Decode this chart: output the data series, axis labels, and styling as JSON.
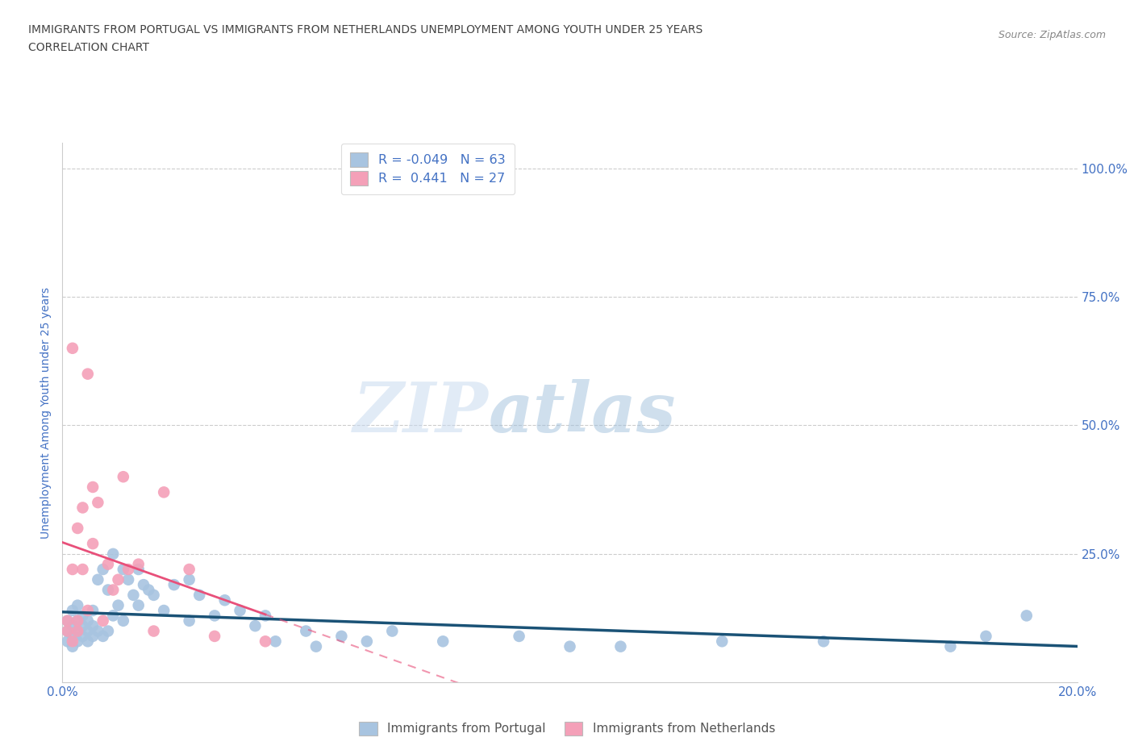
{
  "title_line1": "IMMIGRANTS FROM PORTUGAL VS IMMIGRANTS FROM NETHERLANDS UNEMPLOYMENT AMONG YOUTH UNDER 25 YEARS",
  "title_line2": "CORRELATION CHART",
  "source_text": "Source: ZipAtlas.com",
  "ylabel": "Unemployment Among Youth under 25 years",
  "watermark_zip": "ZIP",
  "watermark_atlas": "atlas",
  "legend_label1": "Immigrants from Portugal",
  "legend_label2": "Immigrants from Netherlands",
  "R1": -0.049,
  "N1": 63,
  "R2": 0.441,
  "N2": 27,
  "color1": "#a8c4e0",
  "color2": "#f4a0b8",
  "line_color1": "#1a5276",
  "line_color2": "#e8507a",
  "axis_label_color": "#4472c4",
  "xlim": [
    0.0,
    0.2
  ],
  "ylim": [
    0.0,
    1.05
  ],
  "yticks": [
    0.0,
    0.25,
    0.5,
    0.75,
    1.0
  ],
  "ytick_labels": [
    "",
    "25.0%",
    "50.0%",
    "75.0%",
    "100.0%"
  ],
  "xticks": [
    0.0,
    0.05,
    0.1,
    0.15,
    0.2
  ],
  "xtick_labels": [
    "0.0%",
    "",
    "",
    "",
    "20.0%"
  ],
  "portugal_x": [
    0.001,
    0.001,
    0.001,
    0.002,
    0.002,
    0.002,
    0.002,
    0.003,
    0.003,
    0.003,
    0.003,
    0.004,
    0.004,
    0.004,
    0.005,
    0.005,
    0.005,
    0.006,
    0.006,
    0.006,
    0.007,
    0.007,
    0.008,
    0.008,
    0.009,
    0.009,
    0.01,
    0.01,
    0.011,
    0.012,
    0.012,
    0.013,
    0.014,
    0.015,
    0.015,
    0.016,
    0.017,
    0.018,
    0.02,
    0.022,
    0.025,
    0.025,
    0.027,
    0.03,
    0.032,
    0.035,
    0.038,
    0.04,
    0.042,
    0.048,
    0.05,
    0.055,
    0.06,
    0.065,
    0.075,
    0.09,
    0.1,
    0.11,
    0.13,
    0.15,
    0.175,
    0.182,
    0.19
  ],
  "portugal_y": [
    0.1,
    0.12,
    0.08,
    0.11,
    0.09,
    0.14,
    0.07,
    0.1,
    0.12,
    0.08,
    0.15,
    0.09,
    0.11,
    0.13,
    0.08,
    0.1,
    0.12,
    0.09,
    0.11,
    0.14,
    0.1,
    0.2,
    0.09,
    0.22,
    0.1,
    0.18,
    0.13,
    0.25,
    0.15,
    0.12,
    0.22,
    0.2,
    0.17,
    0.22,
    0.15,
    0.19,
    0.18,
    0.17,
    0.14,
    0.19,
    0.2,
    0.12,
    0.17,
    0.13,
    0.16,
    0.14,
    0.11,
    0.13,
    0.08,
    0.1,
    0.07,
    0.09,
    0.08,
    0.1,
    0.08,
    0.09,
    0.07,
    0.07,
    0.08,
    0.08,
    0.07,
    0.09,
    0.13
  ],
  "netherlands_x": [
    0.001,
    0.001,
    0.002,
    0.002,
    0.002,
    0.003,
    0.003,
    0.003,
    0.004,
    0.004,
    0.005,
    0.005,
    0.006,
    0.006,
    0.007,
    0.008,
    0.009,
    0.01,
    0.011,
    0.012,
    0.013,
    0.015,
    0.018,
    0.02,
    0.025,
    0.03,
    0.04
  ],
  "netherlands_y": [
    0.1,
    0.12,
    0.65,
    0.08,
    0.22,
    0.1,
    0.12,
    0.3,
    0.22,
    0.34,
    0.6,
    0.14,
    0.27,
    0.38,
    0.35,
    0.12,
    0.23,
    0.18,
    0.2,
    0.4,
    0.22,
    0.23,
    0.1,
    0.37,
    0.22,
    0.09,
    0.08
  ]
}
